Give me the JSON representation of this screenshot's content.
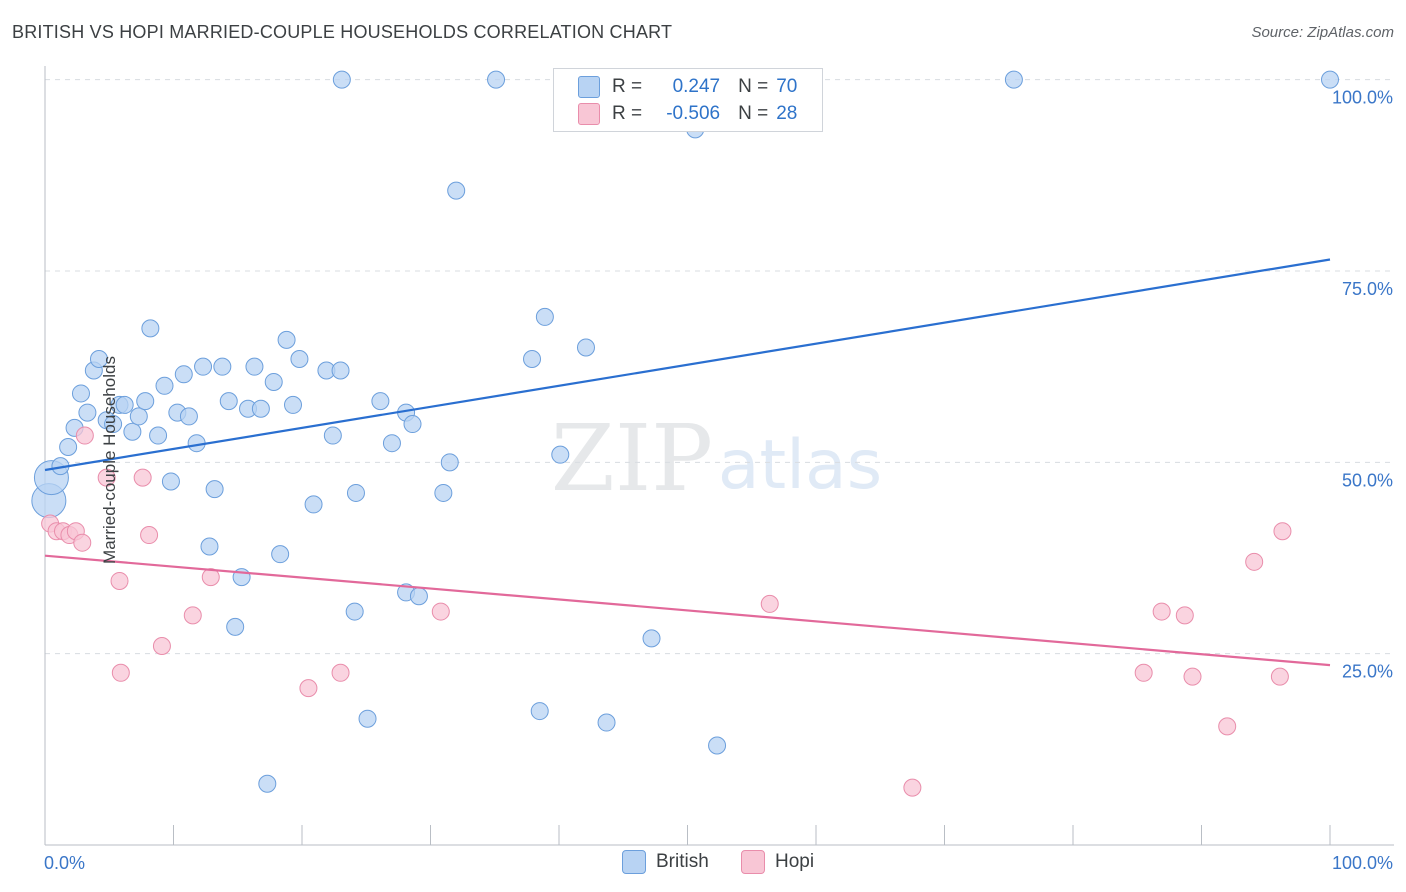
{
  "header": {
    "title": "BRITISH VS HOPI MARRIED-COUPLE HOUSEHOLDS CORRELATION CHART",
    "source": "Source: ZipAtlas.com"
  },
  "watermark": {
    "zip": "ZIP",
    "atlas": "atlas"
  },
  "legend": {
    "british": {
      "r_label": "R =",
      "r_value": "0.247",
      "n_label": "N =",
      "n_value": "70"
    },
    "hopi": {
      "r_label": "R =",
      "r_value": "-0.506",
      "n_label": "N =",
      "n_value": "28"
    }
  },
  "bottom_legend": {
    "british": "British",
    "hopi": "Hopi"
  },
  "colors": {
    "british_fill": "#b8d3f3",
    "british_stroke": "#6c9fdc",
    "british_line": "#2a6fd0",
    "hopi_fill": "#f8c6d5",
    "hopi_stroke": "#e98dab",
    "hopi_line": "#e2699a",
    "tick_text": "#3a76c8",
    "grid": "#d8dce1",
    "axis": "#b9bec5"
  },
  "chart_data": {
    "type": "scatter",
    "title": "BRITISH VS HOPI MARRIED-COUPLE HOUSEHOLDS CORRELATION CHART",
    "xlabel": "",
    "ylabel": "Married-couple Households",
    "xlim": [
      0,
      100
    ],
    "ylim": [
      0,
      101
    ],
    "x_tick_labels": [
      "0.0%",
      "100.0%"
    ],
    "y_ticks": [
      25,
      50,
      75,
      100
    ],
    "y_tick_labels": [
      "25.0%",
      "50.0%",
      "75.0%",
      "100.0%"
    ],
    "grid": true,
    "legend_position": "top-center",
    "series": [
      {
        "name": "British",
        "r": 0.247,
        "n": 70,
        "trend": [
          [
            0,
            49.0
          ],
          [
            100,
            76.5
          ]
        ],
        "points": [
          [
            0.3,
            45.0,
            "large"
          ],
          [
            0.5,
            48.0,
            "large"
          ],
          [
            1.2,
            49.5
          ],
          [
            1.8,
            52.0
          ],
          [
            2.3,
            54.5
          ],
          [
            2.8,
            59.0
          ],
          [
            3.3,
            56.5
          ],
          [
            3.8,
            62.0
          ],
          [
            4.2,
            63.5
          ],
          [
            4.8,
            55.5
          ],
          [
            5.3,
            55.0
          ],
          [
            5.8,
            57.5
          ],
          [
            6.2,
            57.5
          ],
          [
            6.8,
            54.0
          ],
          [
            7.3,
            56.0
          ],
          [
            7.8,
            58.0
          ],
          [
            8.2,
            67.5
          ],
          [
            8.8,
            53.5
          ],
          [
            9.3,
            60.0
          ],
          [
            9.8,
            47.5
          ],
          [
            10.3,
            56.5
          ],
          [
            10.8,
            61.5
          ],
          [
            11.2,
            56.0
          ],
          [
            11.8,
            52.5
          ],
          [
            12.3,
            62.5
          ],
          [
            12.8,
            39.0
          ],
          [
            13.2,
            46.5
          ],
          [
            13.8,
            62.5
          ],
          [
            14.3,
            58.0
          ],
          [
            15.3,
            35.0
          ],
          [
            14.8,
            28.5
          ],
          [
            15.8,
            57.0
          ],
          [
            16.3,
            62.5
          ],
          [
            16.8,
            57.0
          ],
          [
            17.3,
            8.0
          ],
          [
            17.8,
            60.5
          ],
          [
            18.3,
            38.0
          ],
          [
            18.8,
            66.0
          ],
          [
            19.3,
            57.5
          ],
          [
            19.8,
            63.5
          ],
          [
            20.9,
            44.5
          ],
          [
            21.9,
            62.0
          ],
          [
            22.4,
            53.5
          ],
          [
            23.0,
            62.0
          ],
          [
            23.1,
            100.0
          ],
          [
            24.1,
            30.5
          ],
          [
            24.2,
            46.0
          ],
          [
            25.1,
            16.5
          ],
          [
            26.1,
            58.0
          ],
          [
            27.0,
            52.5
          ],
          [
            28.1,
            56.5
          ],
          [
            28.1,
            33.0
          ],
          [
            28.6,
            55.0
          ],
          [
            29.1,
            32.5
          ],
          [
            31.0,
            46.0
          ],
          [
            31.5,
            50.0
          ],
          [
            32.0,
            85.5
          ],
          [
            35.1,
            100.0
          ],
          [
            37.9,
            63.5
          ],
          [
            38.5,
            17.5
          ],
          [
            38.9,
            69.0
          ],
          [
            40.1,
            51.0
          ],
          [
            42.1,
            65.0
          ],
          [
            43.7,
            16.0
          ],
          [
            47.2,
            27.0
          ],
          [
            50.3,
            100.0
          ],
          [
            50.6,
            93.5
          ],
          [
            52.3,
            13.0
          ],
          [
            75.4,
            100.0
          ],
          [
            100.0,
            100.0
          ]
        ]
      },
      {
        "name": "Hopi",
        "r": -0.506,
        "n": 28,
        "trend": [
          [
            0,
            37.8
          ],
          [
            100,
            23.5
          ]
        ],
        "points": [
          [
            0.4,
            42.0
          ],
          [
            0.9,
            41.0
          ],
          [
            1.4,
            41.0
          ],
          [
            1.9,
            40.5
          ],
          [
            2.4,
            41.0
          ],
          [
            2.9,
            39.5
          ],
          [
            3.1,
            53.5
          ],
          [
            4.8,
            48.0
          ],
          [
            5.8,
            34.5
          ],
          [
            5.9,
            22.5
          ],
          [
            7.6,
            48.0
          ],
          [
            8.1,
            40.5
          ],
          [
            9.1,
            26.0
          ],
          [
            11.5,
            30.0
          ],
          [
            12.9,
            35.0
          ],
          [
            20.5,
            20.5
          ],
          [
            23.0,
            22.5
          ],
          [
            30.8,
            30.5
          ],
          [
            56.4,
            31.5
          ],
          [
            67.5,
            7.5
          ],
          [
            85.5,
            22.5
          ],
          [
            86.9,
            30.5
          ],
          [
            88.7,
            30.0
          ],
          [
            89.3,
            22.0
          ],
          [
            92.0,
            15.5
          ],
          [
            94.1,
            37.0
          ],
          [
            96.1,
            22.0
          ],
          [
            96.3,
            41.0
          ]
        ]
      }
    ]
  }
}
